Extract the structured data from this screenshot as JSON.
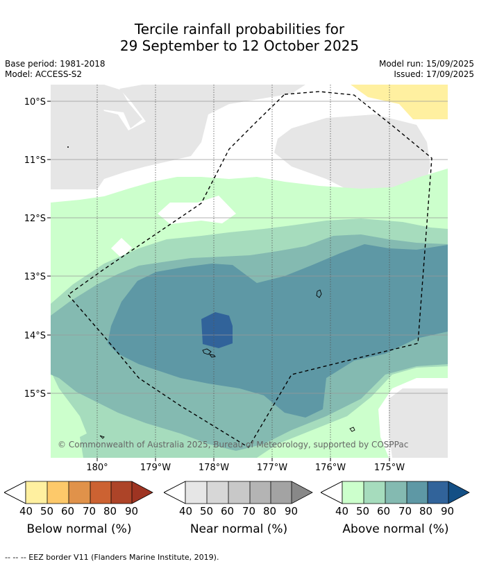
{
  "title_line1": "Tercile rainfall probabilities for",
  "title_line2": "29 September to 12 October 2025",
  "base_period": "Base period: 1981-2018",
  "model": "Model: ACCESS-S2",
  "model_run": "Model run: 15/09/2025",
  "issued": "Issued: 17/09/2025",
  "axes": {
    "lat_labels": [
      "10°S",
      "11°S",
      "12°S",
      "13°S",
      "14°S",
      "15°S"
    ],
    "lon_labels": [
      "180°",
      "179°W",
      "178°W",
      "177°W",
      "176°W",
      "175°W"
    ]
  },
  "copyright": "© Commonwealth of Australia 2025, Bureau of Meteorology, supported by COSPPac",
  "colorbars": [
    {
      "title": "Below normal (%)",
      "ticks": [
        "40",
        "50",
        "60",
        "70",
        "80",
        "90"
      ],
      "colors": [
        "#fff0a0",
        "#fdc96a",
        "#e0924a",
        "#cc6232",
        "#ad4428",
        "#9e3422"
      ]
    },
    {
      "title": "Near normal (%)",
      "ticks": [
        "40",
        "50",
        "60",
        "70",
        "80",
        "90"
      ],
      "colors": [
        "#e6e6e6",
        "#d7d7d7",
        "#c8c8c8",
        "#b4b4b4",
        "#a3a3a3",
        "#888888"
      ]
    },
    {
      "title": "Above normal (%)",
      "ticks": [
        "40",
        "50",
        "60",
        "70",
        "80",
        "90"
      ],
      "colors": [
        "#ccffcc",
        "#a6dcbd",
        "#84bab1",
        "#5e98a5",
        "#31639a",
        "#134f85"
      ]
    }
  ],
  "legend_border": "-- -- -- EEZ border V11 (Flanders Marine Institute, 2019)."
}
